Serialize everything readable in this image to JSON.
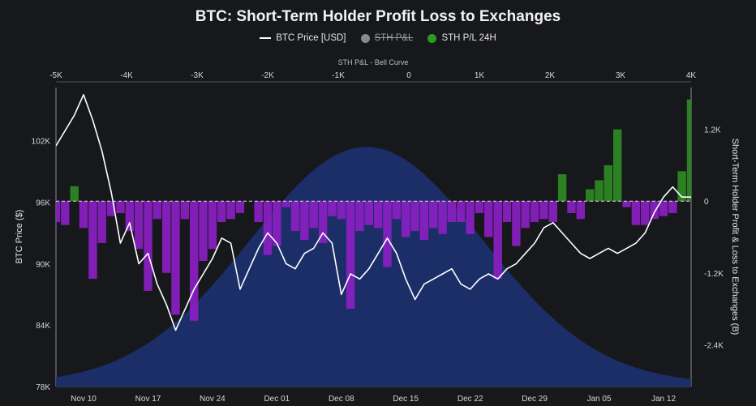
{
  "title": "BTC: Short-Term Holder Profit Loss to Exchanges",
  "legend": {
    "price": "BTC Price [USD]",
    "pl": "STH P&L",
    "pl24": "STH P/L 24H"
  },
  "colors": {
    "background": "#17181c",
    "price_line": "#ffffff",
    "profit": "#2e8b22",
    "loss": "#8a1fc2",
    "bell": "#1c2f6b",
    "legend_pl": "#8a8a8a"
  },
  "chart_data": {
    "type": "line",
    "title": "BTC: Short-Term Holder Profit Loss to Exchanges",
    "xlabel": "",
    "ylabel": "BTC Price ($)",
    "y2label": "Short-Term Holder Profit & Loss to Exchanges (B)",
    "top_axis_label": "STH P&L - Bell Curve",
    "x_ticks": [
      "Nov 10",
      "Nov 17",
      "Nov 24",
      "Dec 01",
      "Dec 08",
      "Dec 15",
      "Dec 22",
      "Dec 29",
      "Jan 05",
      "Jan 12"
    ],
    "x_tick_index": [
      3,
      10,
      17,
      24,
      31,
      38,
      45,
      52,
      59,
      66
    ],
    "x_range_index": [
      0,
      69
    ],
    "y_ticks": [
      "78K",
      "84K",
      "90K",
      "96K",
      "102K"
    ],
    "y_tick_values": [
      78000,
      84000,
      90000,
      96000,
      102000
    ],
    "ylim": [
      78000,
      107200
    ],
    "y2_ticks": [
      "-2.4K",
      "-1.2K",
      "0",
      "1.2K"
    ],
    "y2_tick_values": [
      -2400,
      -1200,
      0,
      1200
    ],
    "y2lim": [
      -3100,
      1900
    ],
    "top_ticks": [
      "-5K",
      "-4K",
      "-3K",
      "-2K",
      "-1K",
      "0",
      "1K",
      "2K",
      "3K",
      "4K"
    ],
    "top_tick_values": [
      -5000,
      -4000,
      -3000,
      -2000,
      -1000,
      0,
      1000,
      2000,
      3000,
      4000
    ],
    "top_range": [
      -5000,
      4000
    ],
    "bell_curve": {
      "mean": -600,
      "sd": 1650,
      "peak_price": 101400,
      "base_price": 78250
    },
    "series": [
      {
        "name": "BTC Price [USD]",
        "kind": "price",
        "values": [
          101500,
          103000,
          104500,
          106500,
          104000,
          101000,
          97000,
          92000,
          94000,
          90000,
          91000,
          88000,
          86000,
          83500,
          85500,
          87500,
          89000,
          90500,
          92500,
          92000,
          87500,
          89500,
          91500,
          93000,
          92000,
          90000,
          89500,
          91000,
          91500,
          93000,
          92000,
          87000,
          89000,
          88500,
          89500,
          91000,
          92500,
          91000,
          88500,
          86500,
          88000,
          88500,
          89000,
          89500,
          88000,
          87500,
          88500,
          89000,
          88500,
          89500,
          90000,
          91000,
          92000,
          93500,
          94000,
          93000,
          92000,
          91000,
          90500,
          91000,
          91500,
          91000,
          91500,
          92000,
          93000,
          95000,
          96500,
          97500,
          96500,
          96500
        ]
      },
      {
        "name": "STH P/L 24H",
        "kind": "pl",
        "values": [
          -350,
          -400,
          250,
          -450,
          -1300,
          -700,
          -250,
          -200,
          -500,
          -800,
          -1500,
          -300,
          -1200,
          -1900,
          -300,
          -2000,
          -1000,
          -800,
          -350,
          -300,
          -200,
          0,
          -350,
          -900,
          -750,
          -100,
          -500,
          -650,
          -450,
          -700,
          -250,
          -300,
          -1800,
          -500,
          -400,
          -450,
          -1100,
          -300,
          -600,
          -500,
          -650,
          -450,
          -550,
          -350,
          -350,
          -550,
          -200,
          -600,
          -1300,
          -350,
          -750,
          -450,
          -350,
          -300,
          -350,
          450,
          -200,
          -300,
          200,
          350,
          600,
          1200,
          -100,
          -400,
          -400,
          -300,
          -250,
          -200,
          500,
          1700
        ]
      }
    ]
  }
}
